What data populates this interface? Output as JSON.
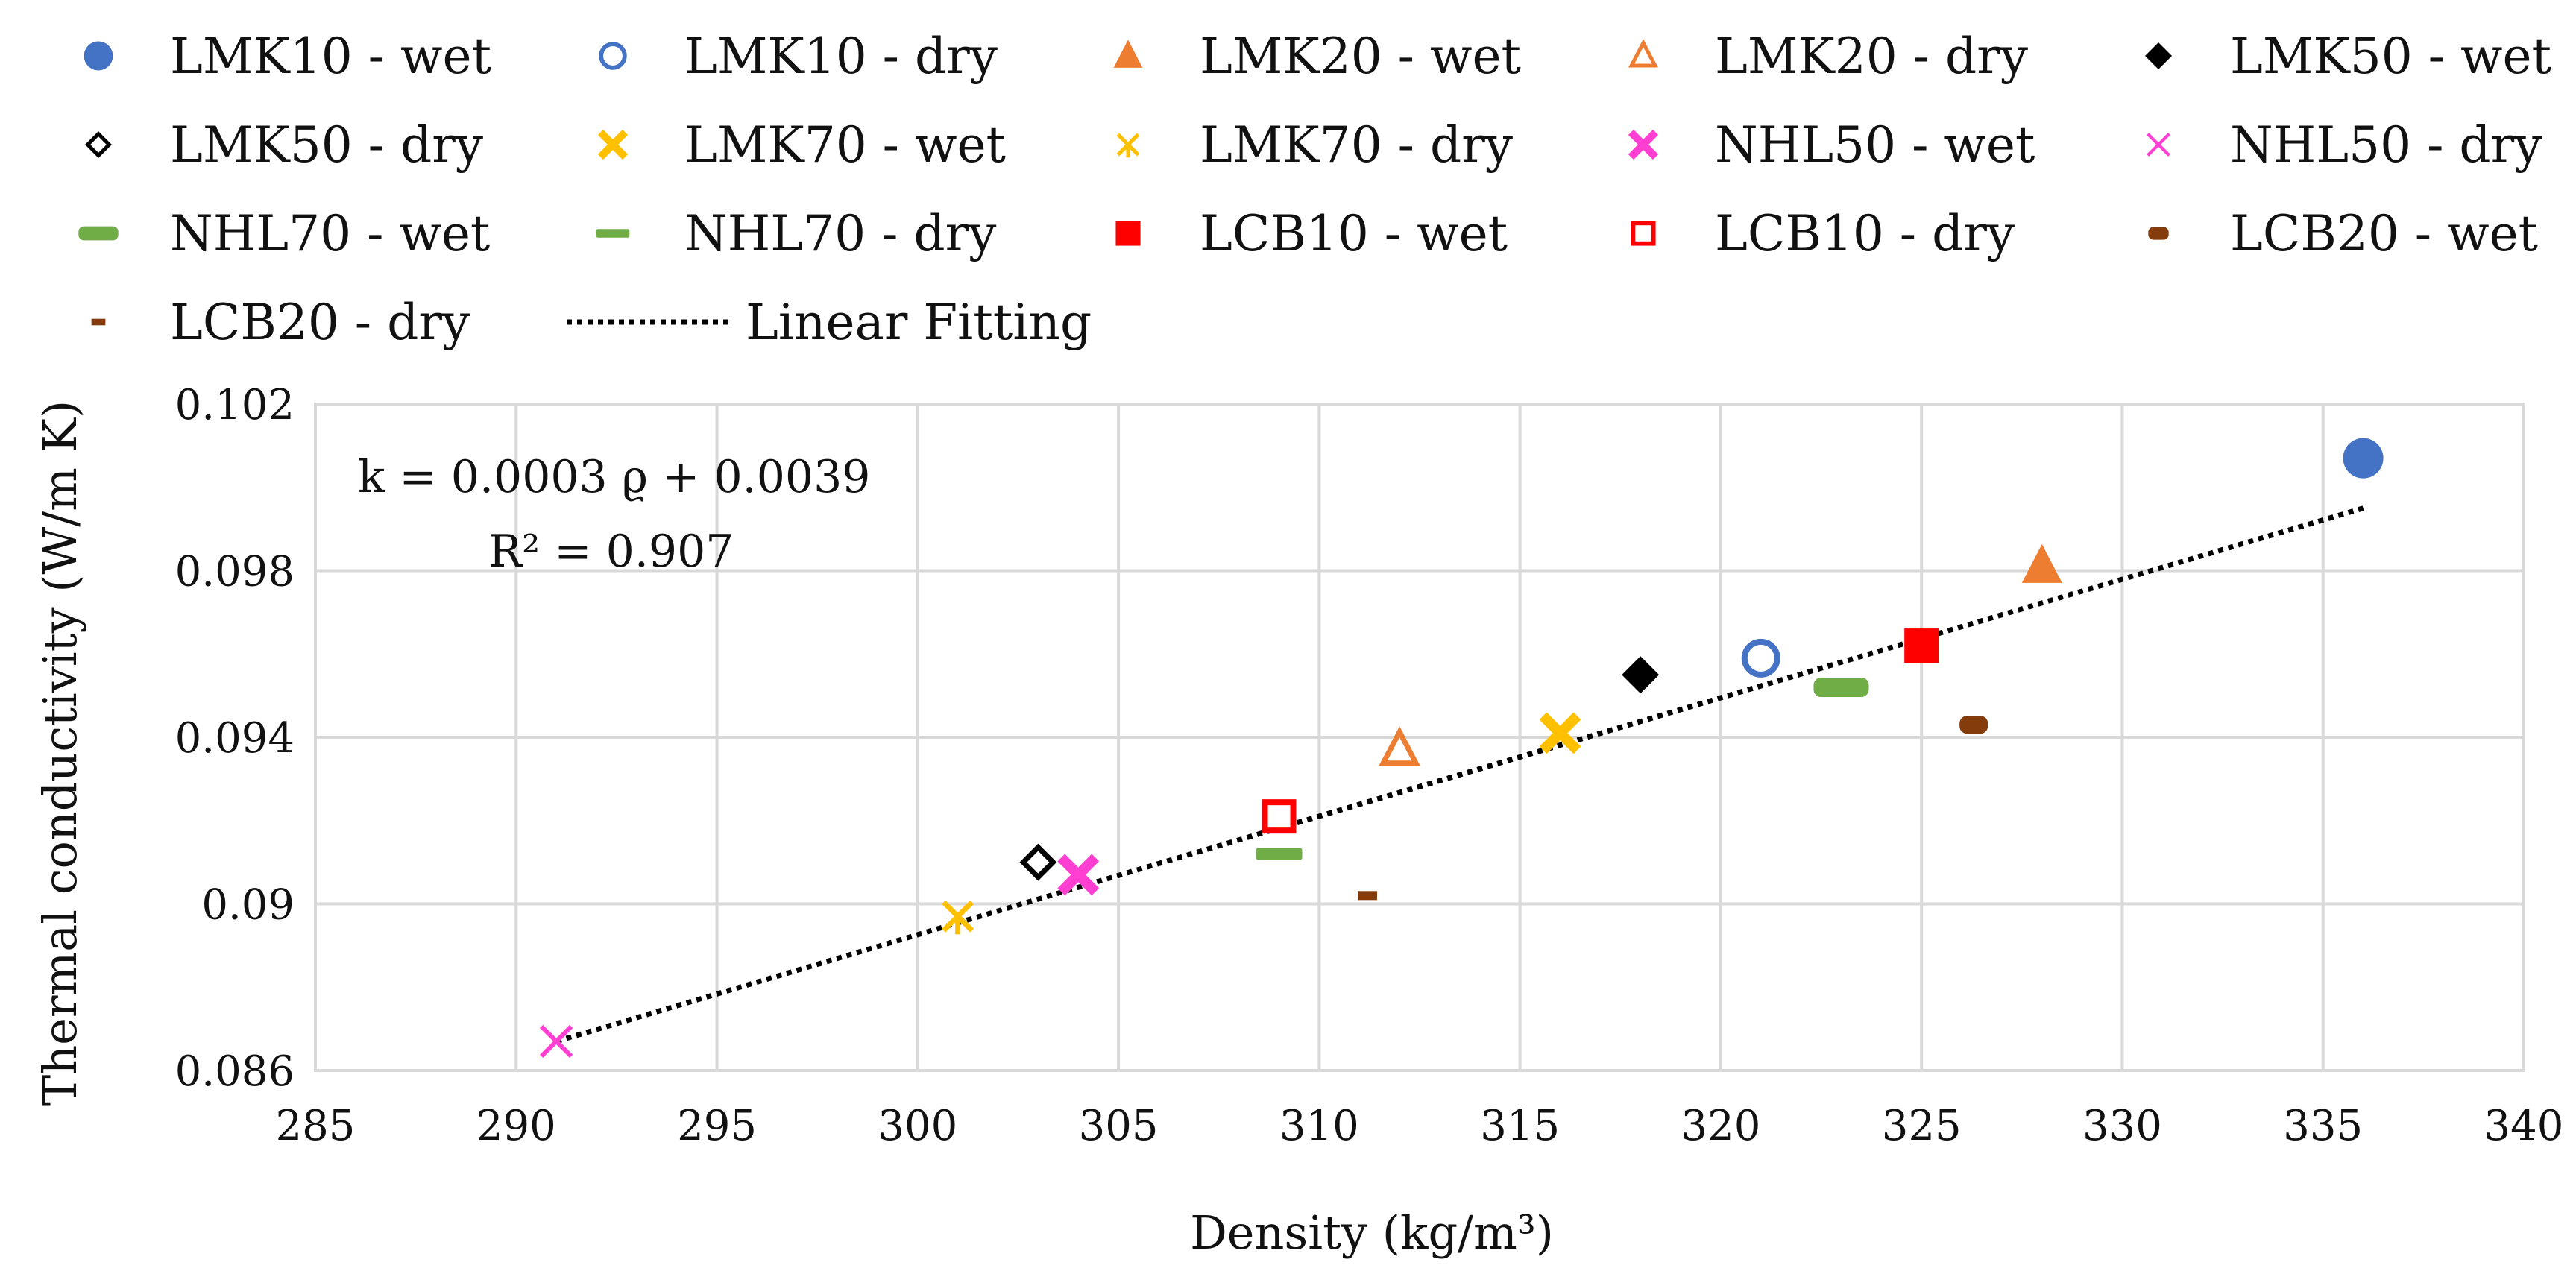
{
  "chart_data": {
    "type": "scatter",
    "title": "",
    "xlabel": "Density (kg/m³)",
    "ylabel": "Thermal conductivity (W/m K)",
    "xlim": [
      285,
      340
    ],
    "ylim": [
      0.086,
      0.102
    ],
    "x_ticks": [
      {
        "value": 285,
        "label": "285"
      },
      {
        "value": 290,
        "label": "290"
      },
      {
        "value": 295,
        "label": "295"
      },
      {
        "value": 300,
        "label": "300"
      },
      {
        "value": 305,
        "label": "305"
      },
      {
        "value": 310,
        "label": "310"
      },
      {
        "value": 315,
        "label": "315"
      },
      {
        "value": 320,
        "label": "320"
      },
      {
        "value": 325,
        "label": "325"
      },
      {
        "value": 330,
        "label": "330"
      },
      {
        "value": 335,
        "label": "335"
      },
      {
        "value": 340,
        "label": "340"
      }
    ],
    "y_ticks": [
      {
        "value": 0.086,
        "label": "0.086"
      },
      {
        "value": 0.09,
        "label": "0.09"
      },
      {
        "value": 0.094,
        "label": "0.094"
      },
      {
        "value": 0.098,
        "label": "0.098"
      },
      {
        "value": 0.102,
        "label": "0.102"
      }
    ],
    "grid": true,
    "legend_position": "top",
    "series": [
      {
        "name": "LMK10 - wet",
        "marker": "circle-filled",
        "color": "#4472c4",
        "x": 336,
        "y": 0.1007
      },
      {
        "name": "LMK10 - dry",
        "marker": "circle-open",
        "color": "#4472c4",
        "x": 321,
        "y": 0.0959
      },
      {
        "name": "LMK20 - wet",
        "marker": "triangle-filled",
        "color": "#ed7d31",
        "x": 328,
        "y": 0.0981
      },
      {
        "name": "LMK20 - dry",
        "marker": "triangle-open",
        "color": "#ed7d31",
        "x": 312,
        "y": 0.0937
      },
      {
        "name": "LMK50 - wet",
        "marker": "diamond-filled",
        "color": "#000000",
        "x": 318,
        "y": 0.0955
      },
      {
        "name": "LMK50 - dry",
        "marker": "diamond-open",
        "color": "#000000",
        "x": 303,
        "y": 0.091
      },
      {
        "name": "LMK70 - wet",
        "marker": "x-thick",
        "color": "#ffc000",
        "x": 316,
        "y": 0.0941
      },
      {
        "name": "LMK70 - dry",
        "marker": "star",
        "color": "#ffc000",
        "x": 301,
        "y": 0.0897
      },
      {
        "name": "NHL50 - wet",
        "marker": "x-thick",
        "color": "#ff3fd2",
        "x": 304,
        "y": 0.0907
      },
      {
        "name": "NHL50 - dry",
        "marker": "x-thin",
        "color": "#ff3fd2",
        "x": 291,
        "y": 0.0867
      },
      {
        "name": "NHL70 - wet",
        "marker": "bar-thick",
        "color": "#70ad47",
        "x": 323,
        "y": 0.0952
      },
      {
        "name": "NHL70 - dry",
        "marker": "bar-thin",
        "color": "#70ad47",
        "x": 309,
        "y": 0.0912
      },
      {
        "name": "LCB10 - wet",
        "marker": "square-filled",
        "color": "#ff0000",
        "x": 325,
        "y": 0.0962
      },
      {
        "name": "LCB10 - dry",
        "marker": "square-open",
        "color": "#ff0000",
        "x": 309,
        "y": 0.0921
      },
      {
        "name": "LCB20 - wet",
        "marker": "rounded-rect",
        "color": "#843c0c",
        "x": 326.3,
        "y": 0.0943
      },
      {
        "name": "LCB20 - dry",
        "marker": "dash",
        "color": "#843c0c",
        "x": 311.2,
        "y": 0.0902
      }
    ],
    "trendline": {
      "name": "Linear Fitting",
      "style": "dotted",
      "color": "#000000",
      "x": [
        291,
        336
      ],
      "y": [
        0.0867,
        0.0995
      ]
    },
    "annotations": [
      {
        "text": "k = 0.0003 ϱ + 0.0039"
      },
      {
        "text": "R² = 0.907"
      }
    ]
  }
}
